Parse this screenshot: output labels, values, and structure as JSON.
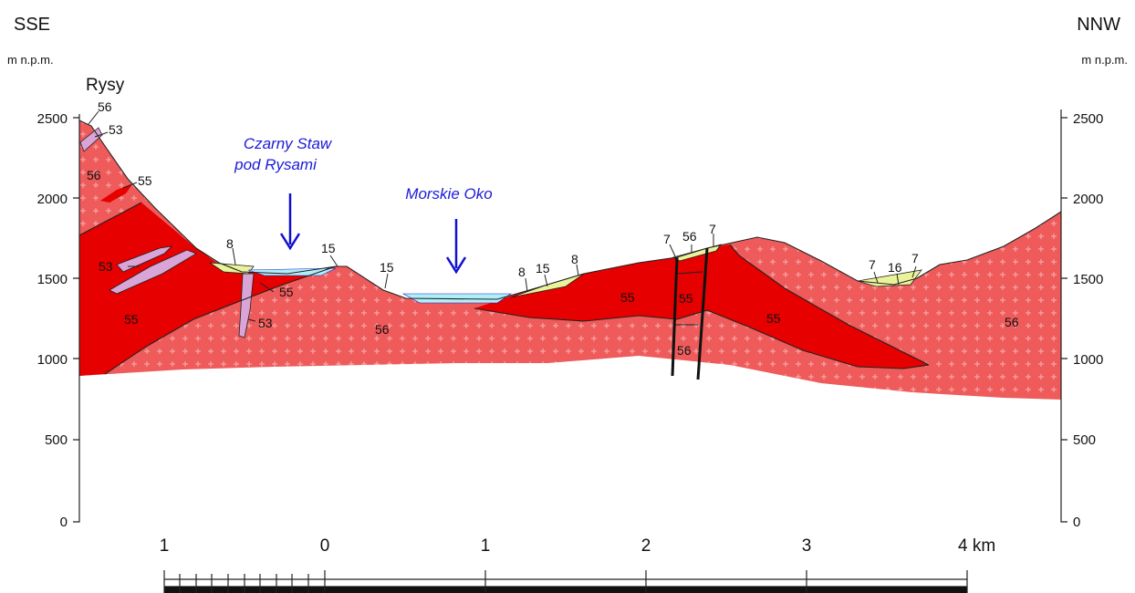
{
  "directions": {
    "left": "SSE",
    "right": "NNW"
  },
  "unit_left": "m n.p.m.",
  "unit_right": "m n.p.m.",
  "peak_label": "Rysy",
  "lakes": {
    "czarny_staw_line1": "Czarny Staw",
    "czarny_staw_line2": "pod Rysami",
    "morskie_oko": "Morskie Oko"
  },
  "elevation_ticks": [
    "2500",
    "2000",
    "1500",
    "1000",
    "500",
    "0"
  ],
  "scale_labels": [
    "1",
    "0",
    "1",
    "2",
    "3",
    "4 km"
  ],
  "unit_labels": {
    "u56_a": "56",
    "u53_a": "53",
    "u56_b": "56",
    "u55_a": "55",
    "u8_a": "8",
    "u15_a": "15",
    "u15_b": "15",
    "u53_b": "53",
    "u55_b": "55",
    "u53_c": "53",
    "u55_c": "55",
    "u56_c": "56",
    "u8_b": "8",
    "u15_c": "15",
    "u8_c": "8",
    "u7_a": "7",
    "u56_d": "56",
    "u7_b": "7",
    "u55_d": "55",
    "u55_e": "55",
    "u56_e": "56",
    "u55_f": "55",
    "u7_c": "7",
    "u16_a": "16",
    "u7_d": "7",
    "u56_f": "56"
  },
  "colors": {
    "unit56": "#ef5a5a",
    "unit55": "#e60000",
    "unit53": "#d9a4d6",
    "quaternary": "#eaf39a",
    "water": "#aef0f6",
    "lake_label": "#1b1bd8",
    "arrow": "#1010d0"
  },
  "icons": {
    "lake_arrow": "down-arrow-icon"
  }
}
